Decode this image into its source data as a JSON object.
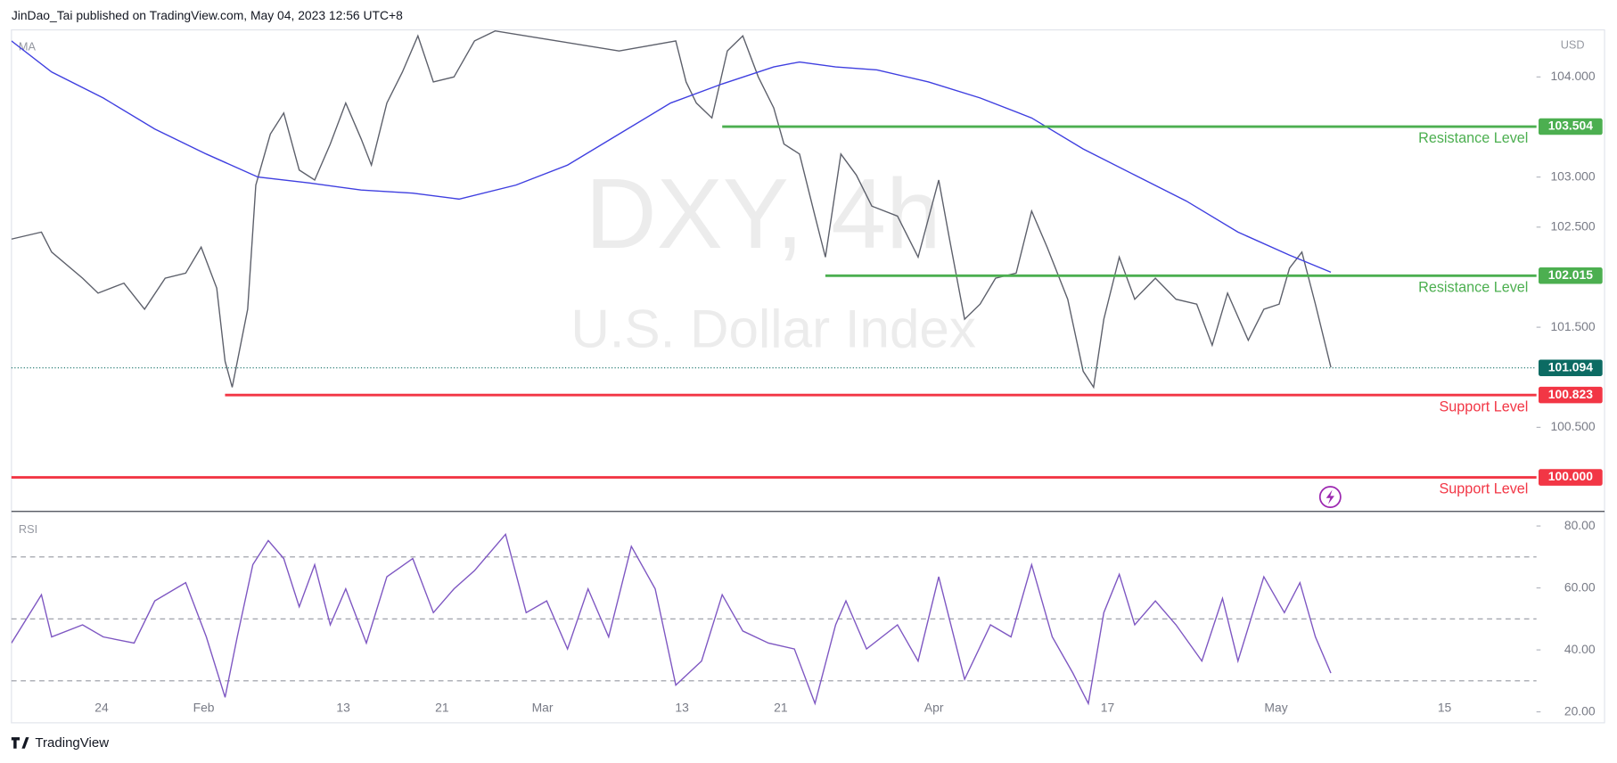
{
  "header": "JinDao_Tai published on TradingView.com, May 04, 2023 12:56 UTC+8",
  "watermark": "DXY, 4h",
  "watermark_subtitle": "U.S. Dollar Index",
  "brand": "TradingView",
  "chart_data": [
    {
      "type": "line",
      "indicator": "MA",
      "currency": "USD",
      "xlim": [
        0,
        89.6
      ],
      "ylim": [
        99.66,
        104.47
      ],
      "yticks": [
        {
          "value": 104,
          "label": "104.000"
        },
        {
          "value": 103,
          "label": "103.000"
        },
        {
          "value": 102.5,
          "label": "102.500"
        },
        {
          "value": 101.5,
          "label": "101.500"
        },
        {
          "value": 100.5,
          "label": "100.500"
        }
      ],
      "series": [
        {
          "color": "#5d606b",
          "x": [
            0,
            1.76,
            2.36,
            4.18,
            5.09,
            6.61,
            7.82,
            9.03,
            10.24,
            11.15,
            12.06,
            12.55,
            12.97,
            13.88,
            14.36,
            15.21,
            16.0,
            16.91,
            17.82,
            18.73,
            19.64,
            20.55,
            21.15,
            22.06,
            22.97,
            23.88,
            24.79,
            26.0,
            27.21,
            28.42,
            32.06,
            35.7,
            39.03,
            39.64,
            40.24,
            41.15,
            42.06,
            42.97,
            43.88,
            44.79,
            45.39,
            46.3,
            47.21,
            47.82,
            48.73,
            49.64,
            50.55,
            52.06,
            53.27,
            54.48,
            55.09,
            56.0,
            56.91,
            57.82,
            59.03,
            59.94,
            60.85,
            62.06,
            62.97,
            63.58,
            64.18,
            65.09,
            66.0,
            67.21,
            68.42,
            69.64,
            70.55,
            71.45,
            72.67,
            73.58,
            74.48,
            75.09,
            75.82,
            76.61,
            77.52
          ],
          "values": [
            102.38,
            102.45,
            102.25,
            101.99,
            101.84,
            101.94,
            101.68,
            101.99,
            102.04,
            102.3,
            101.89,
            101.16,
            100.9,
            101.68,
            102.92,
            103.43,
            103.64,
            103.07,
            102.97,
            103.33,
            103.74,
            103.38,
            103.12,
            103.74,
            104.05,
            104.41,
            103.95,
            104.0,
            104.36,
            104.46,
            104.36,
            104.26,
            104.36,
            103.95,
            103.74,
            103.59,
            104.26,
            104.41,
            104.0,
            103.69,
            103.33,
            103.23,
            102.61,
            102.2,
            103.23,
            103.02,
            102.71,
            102.61,
            102.2,
            102.97,
            102.4,
            101.58,
            101.73,
            101.99,
            102.04,
            102.66,
            102.3,
            101.78,
            101.06,
            100.9,
            101.58,
            102.2,
            101.78,
            101.99,
            101.78,
            101.73,
            101.32,
            101.84,
            101.37,
            101.68,
            101.73,
            102.09,
            102.25,
            101.73,
            101.1
          ]
        },
        {
          "color": "#3f3fe0",
          "x": [
            0,
            2.36,
            5.39,
            8.42,
            11.45,
            14.48,
            17.52,
            20.55,
            23.58,
            26.3,
            29.64,
            32.67,
            35.7,
            38.73,
            41.76,
            44.79,
            46.3,
            48.42,
            50.85,
            53.88,
            56.91,
            59.94,
            62.97,
            66.0,
            69.03,
            72.06,
            75.09,
            77.52
          ],
          "values": [
            104.36,
            104.05,
            103.79,
            103.48,
            103.23,
            103.0,
            102.94,
            102.87,
            102.84,
            102.78,
            102.92,
            103.12,
            103.43,
            103.74,
            103.93,
            104.1,
            104.15,
            104.1,
            104.07,
            103.95,
            103.79,
            103.59,
            103.28,
            103.02,
            102.76,
            102.45,
            102.22,
            102.05
          ]
        }
      ],
      "levels": [
        {
          "name": "Resistance Level",
          "value": 103.504,
          "from": 41.76,
          "color": "#4caf50"
        },
        {
          "name": "Resistance Level",
          "value": 102.015,
          "from": 47.82,
          "color": "#4caf50"
        },
        {
          "name": "Support Level",
          "value": 100.823,
          "from": 12.55,
          "color": "#f23645"
        },
        {
          "name": "Support Level",
          "value": 100,
          "label": "100.000",
          "from": 0,
          "color": "#f23645"
        }
      ],
      "last_price": {
        "value": 101.094,
        "color": "#0c6b63"
      }
    },
    {
      "type": "line",
      "indicator": "RSI",
      "xlim": [
        0,
        89.6
      ],
      "ylim": [
        16.8,
        84.7
      ],
      "yticks": [
        {
          "value": 80,
          "label": "80.00"
        },
        {
          "value": 60,
          "label": "60.00"
        },
        {
          "value": 40,
          "label": "40.00"
        },
        {
          "value": 20,
          "label": "20.00"
        }
      ],
      "bands": [
        70,
        50,
        30
      ],
      "xticks": [
        {
          "value": 5.3,
          "label": "24"
        },
        {
          "value": 11.3,
          "label": "Feb"
        },
        {
          "value": 19.5,
          "label": "13"
        },
        {
          "value": 25.3,
          "label": "21"
        },
        {
          "value": 31.2,
          "label": "Mar"
        },
        {
          "value": 39.4,
          "label": "13"
        },
        {
          "value": 45.2,
          "label": "21"
        },
        {
          "value": 54.2,
          "label": "Apr"
        },
        {
          "value": 64.4,
          "label": "17"
        },
        {
          "value": 74.3,
          "label": "May"
        },
        {
          "value": 84.2,
          "label": "15"
        }
      ],
      "series": [
        {
          "color": "#7e57c2",
          "x": [
            0,
            1.76,
            2.36,
            4.18,
            5.39,
            7.21,
            8.42,
            10.24,
            11.45,
            12.55,
            13.27,
            14.18,
            15.09,
            16.0,
            16.91,
            17.82,
            18.73,
            19.64,
            20.85,
            22.06,
            23.58,
            24.79,
            26.0,
            27.21,
            29.03,
            30.24,
            31.45,
            32.67,
            33.88,
            35.09,
            36.42,
            37.82,
            39.03,
            40.55,
            41.76,
            42.97,
            44.48,
            46.0,
            47.21,
            48.42,
            49.03,
            50.24,
            52.06,
            53.27,
            54.48,
            56.0,
            57.52,
            58.73,
            59.94,
            61.15,
            62.36,
            63.27,
            64.18,
            65.09,
            66.0,
            67.21,
            68.42,
            69.94,
            71.15,
            72.06,
            73.58,
            74.79,
            75.7,
            76.61,
            77.52
          ],
          "values": [
            42.2,
            57.8,
            44.2,
            48.1,
            44.2,
            42.2,
            55.8,
            61.7,
            44.2,
            24.7,
            44.2,
            67.5,
            75.3,
            69.5,
            53.9,
            67.5,
            48.1,
            59.7,
            42.2,
            63.6,
            69.5,
            52.0,
            59.7,
            65.6,
            77.3,
            52.0,
            55.8,
            40.3,
            59.7,
            44.2,
            73.4,
            59.7,
            28.6,
            36.4,
            57.8,
            46.1,
            42.2,
            40.3,
            22.7,
            48.1,
            55.8,
            40.3,
            48.1,
            36.4,
            63.6,
            30.5,
            48.1,
            44.2,
            67.5,
            44.2,
            32.5,
            22.7,
            52.0,
            64.4,
            48.1,
            55.8,
            48.1,
            36.4,
            56.6,
            36.4,
            63.6,
            52.0,
            61.7,
            44.2,
            32.5
          ]
        }
      ]
    }
  ]
}
